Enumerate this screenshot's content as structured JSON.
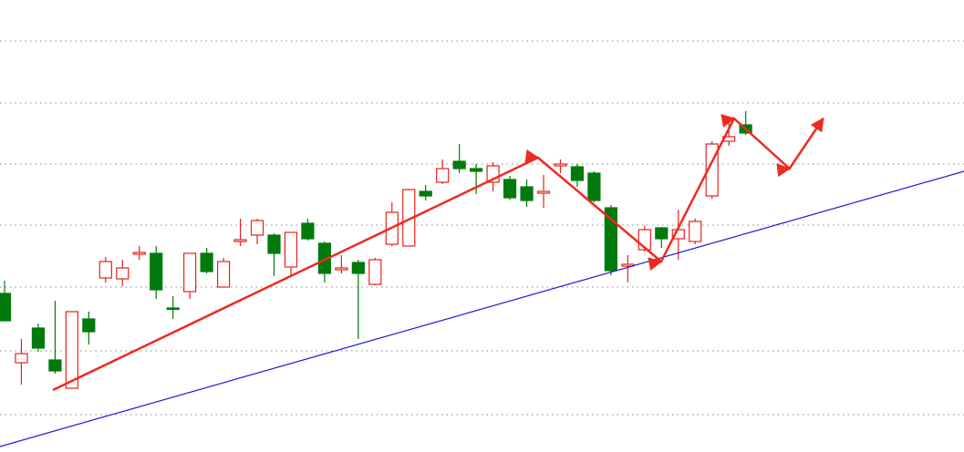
{
  "chart_data": {
    "type": "candlestick",
    "up_color": "#e8201c",
    "down_color": "#007a0c",
    "xlim": [
      -0.27,
      56.96
    ],
    "ylim": [
      0,
      496
    ],
    "yticks": [
      41,
      111,
      181,
      249,
      316,
      383,
      451
    ],
    "grid": true,
    "open": [
      174,
      98,
      136,
      101,
      70,
      146,
      191,
      190,
      217,
      218,
      158,
      176,
      218,
      181,
      231,
      238,
      238,
      203,
      251,
      229,
      200,
      208,
      184,
      228,
      226,
      286,
      296,
      319,
      311,
      296,
      299,
      291,
      284,
      314,
      313,
      306,
      268,
      204,
      222,
      246,
      234,
      231,
      281,
      341,
      359
    ],
    "high": [
      188,
      124,
      141,
      166,
      154,
      154,
      214,
      211,
      226,
      226,
      171,
      218,
      224,
      213,
      256,
      256,
      240,
      241,
      256,
      231,
      216,
      211,
      213,
      274,
      289,
      293,
      321,
      338,
      316,
      318,
      303,
      299,
      304,
      321,
      316,
      308,
      271,
      216,
      248,
      247,
      266,
      256,
      341,
      368,
      374
    ],
    "low": [
      144,
      74,
      110,
      86,
      70,
      118,
      186,
      182,
      211,
      168,
      146,
      168,
      196,
      181,
      226,
      228,
      193,
      193,
      232,
      186,
      196,
      124,
      183,
      226,
      226,
      276,
      294,
      306,
      283,
      286,
      277,
      269,
      268,
      306,
      291,
      274,
      194,
      186,
      220,
      224,
      211,
      228,
      278,
      336,
      348
    ],
    "close": [
      144,
      108,
      114,
      89,
      154,
      132,
      209,
      202,
      219,
      178,
      157,
      218,
      198,
      209,
      233,
      254,
      218,
      241,
      234,
      196,
      202,
      196,
      211,
      263,
      288,
      281,
      311,
      311,
      308,
      314,
      279,
      276,
      286,
      316,
      298,
      276,
      199,
      206,
      244,
      234,
      244,
      253,
      338,
      346,
      350
    ],
    "trendline": {
      "color": "#1a1adb",
      "x": [
        -0.27,
        56.96
      ],
      "values": [
        6,
        308
      ]
    },
    "wave": {
      "color": "#ee2a22",
      "x": [
        2.87,
        31.67,
        38.98,
        43.31,
        46.6,
        48.6
      ],
      "values": [
        68,
        323,
        209,
        366,
        311,
        366
      ]
    }
  }
}
